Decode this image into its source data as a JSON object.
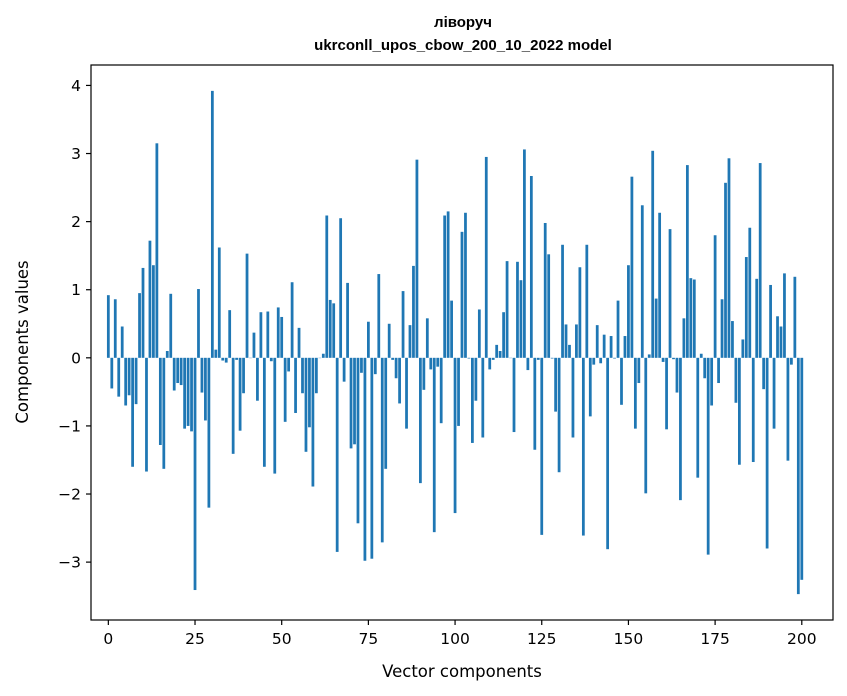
{
  "chart_data": {
    "type": "bar",
    "title": "ліворуч",
    "subtitle": "ukrconll_upos_cbow_200_10_2022 model",
    "xlabel": "Vector components",
    "ylabel": "Components values",
    "xlim": [
      -5,
      209
    ],
    "ylim": [
      -3.85,
      4.3
    ],
    "xticks": [
      0,
      25,
      50,
      75,
      100,
      125,
      150,
      175,
      200
    ],
    "yticks": [
      -3,
      -2,
      -1,
      0,
      1,
      2,
      3,
      4
    ],
    "ytick_labels": [
      "−3",
      "−2",
      "−1",
      "0",
      "1",
      "2",
      "3",
      "4"
    ],
    "grid": false,
    "bar_color": "#1f77b4",
    "values": [
      0.92,
      -0.45,
      0.86,
      -0.57,
      0.46,
      -0.7,
      -0.55,
      -1.6,
      -0.68,
      0.95,
      1.32,
      -1.67,
      1.72,
      1.36,
      3.15,
      -1.28,
      -1.63,
      0.1,
      0.94,
      -0.48,
      -0.37,
      -0.4,
      -1.04,
      -1.0,
      -1.08,
      -3.41,
      1.01,
      -0.51,
      -0.92,
      -2.2,
      3.92,
      0.12,
      1.62,
      -0.04,
      -0.07,
      0.7,
      -1.41,
      -0.03,
      -1.07,
      -0.52,
      1.53,
      0.0,
      0.37,
      -0.63,
      0.67,
      -1.6,
      0.68,
      -0.05,
      -1.7,
      0.74,
      0.6,
      -0.94,
      -0.2,
      1.11,
      -0.81,
      0.44,
      -0.52,
      -1.38,
      -1.02,
      -1.89,
      -0.52,
      0.0,
      0.06,
      2.09,
      0.85,
      0.8,
      -2.85,
      2.05,
      -0.35,
      1.1,
      -1.33,
      -1.27,
      -2.43,
      -0.22,
      -2.98,
      0.53,
      -2.95,
      -0.24,
      1.23,
      -2.71,
      -1.63,
      0.5,
      -0.03,
      -0.3,
      -0.67,
      0.98,
      -1.04,
      0.48,
      1.35,
      2.91,
      -1.84,
      -0.47,
      0.58,
      -0.17,
      -2.56,
      -0.13,
      -0.96,
      2.09,
      2.15,
      0.84,
      -2.28,
      -1.0,
      1.85,
      2.13,
      -0.01,
      -1.25,
      -0.63,
      0.71,
      -1.17,
      2.95,
      -0.17,
      -0.03,
      0.19,
      0.1,
      0.67,
      1.42,
      0.0,
      -1.09,
      1.41,
      1.14,
      3.06,
      -0.18,
      2.67,
      -1.35,
      -0.03,
      -2.6,
      1.98,
      1.52,
      -0.01,
      -0.79,
      -1.68,
      1.66,
      0.49,
      0.19,
      -1.17,
      0.49,
      1.33,
      -2.61,
      1.66,
      -0.86,
      -0.1,
      0.48,
      -0.08,
      0.34,
      -2.81,
      0.32,
      -0.01,
      0.84,
      -0.69,
      0.32,
      1.36,
      2.66,
      -1.04,
      -0.37,
      2.24,
      -1.99,
      0.05,
      3.04,
      0.87,
      2.13,
      -0.06,
      -1.05,
      1.89,
      -0.02,
      -0.51,
      -2.09,
      0.58,
      2.83,
      1.17,
      1.15,
      -1.76,
      0.06,
      -0.3,
      -2.89,
      -0.7,
      1.8,
      -0.37,
      0.86,
      2.57,
      2.93,
      0.54,
      -0.66,
      -1.57,
      0.27,
      1.48,
      1.91,
      -1.53,
      1.16,
      2.86,
      -0.46,
      -2.8,
      1.07,
      -1.04,
      0.61,
      0.46,
      1.24,
      -1.51,
      -0.1,
      1.19,
      -3.47,
      -3.26
    ]
  }
}
